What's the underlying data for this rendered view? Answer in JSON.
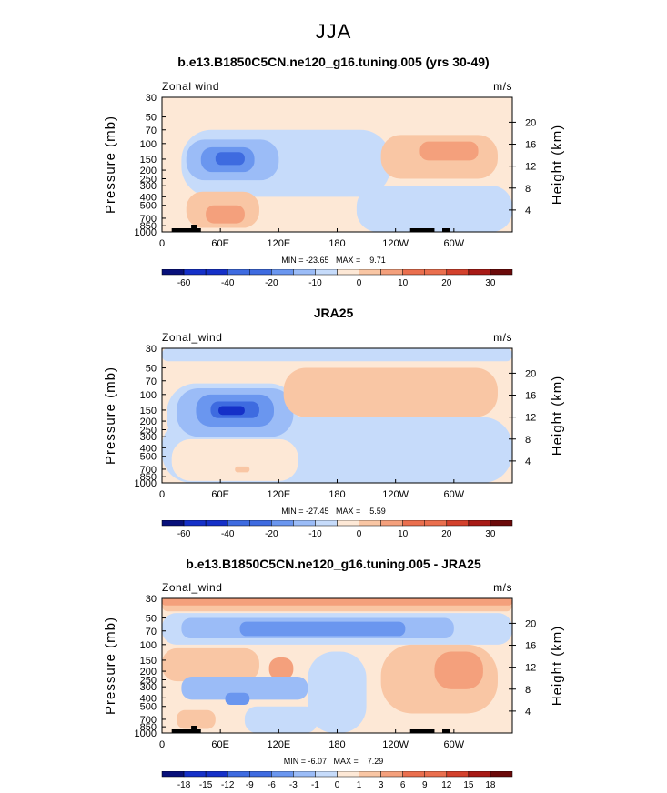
{
  "figure_title": "JJA",
  "colors": {
    "neg6": "#08107a",
    "neg5": "#1530c8",
    "neg4": "#3e6be0",
    "neg3": "#6a96ef",
    "neg2": "#9bbcf7",
    "neg1": "#c6dbfa",
    "zero": "#ffffff",
    "pos1": "#fde8d6",
    "pos2": "#f9c6a4",
    "pos3": "#f4a07c",
    "pos4": "#ea6f4e",
    "pos5": "#d3412c",
    "pos6": "#a81a16",
    "pos7": "#6b0a0a"
  },
  "chart_data": [
    {
      "type": "heatmap",
      "panel_title": "b.e13.B1850C5CN.ne120_g16.tuning.005 (yrs 30-49)",
      "variable_label": "Zonal wind",
      "units_label": "m/s",
      "ylabel": "Pressure (mb)",
      "y2label": "Height (km)",
      "x_ticks": [
        "0",
        "60E",
        "120E",
        "180",
        "120W",
        "60W"
      ],
      "y_ticks": [
        "30",
        "50",
        "70",
        "100",
        "150",
        "200",
        "250",
        "300",
        "400",
        "500",
        "700",
        "850",
        "1000"
      ],
      "y2_ticks": [
        "20",
        "16",
        "12",
        "8",
        "4"
      ],
      "stats_text": "MIN = -23.65   MAX =    9.71",
      "min": -23.65,
      "max": 9.71,
      "colorbar_labels": [
        "-60",
        "-40",
        "-20",
        "-10",
        "0",
        "10",
        "20",
        "30"
      ],
      "background": "pos1",
      "features": [
        {
          "level": "neg1",
          "lon": [
            20,
            235
          ],
          "p": [
            70,
            400
          ]
        },
        {
          "level": "neg1",
          "lon": [
            200,
            360
          ],
          "p": [
            300,
            1000
          ]
        },
        {
          "level": "neg2",
          "lon": [
            25,
            120
          ],
          "p": [
            90,
            260
          ]
        },
        {
          "level": "neg3",
          "lon": [
            40,
            95
          ],
          "p": [
            110,
            210
          ]
        },
        {
          "level": "neg4",
          "lon": [
            55,
            85
          ],
          "p": [
            125,
            175
          ]
        },
        {
          "level": "pos2",
          "lon": [
            225,
            345
          ],
          "p": [
            80,
            250
          ]
        },
        {
          "level": "pos3",
          "lon": [
            265,
            325
          ],
          "p": [
            95,
            155
          ]
        },
        {
          "level": "pos2",
          "lon": [
            25,
            100
          ],
          "p": [
            350,
            900
          ]
        },
        {
          "level": "pos3",
          "lon": [
            45,
            85
          ],
          "p": [
            500,
            800
          ]
        }
      ]
    },
    {
      "type": "heatmap",
      "panel_title": "JRA25",
      "variable_label": "Zonal_wind",
      "units_label": "m/s",
      "ylabel": "Pressure (mb)",
      "y2label": "Height (km)",
      "x_ticks": [
        "0",
        "60E",
        "120E",
        "180",
        "120W",
        "60W"
      ],
      "y_ticks": [
        "30",
        "50",
        "70",
        "100",
        "150",
        "200",
        "250",
        "300",
        "400",
        "500",
        "700",
        "850",
        "1000"
      ],
      "y2_ticks": [
        "20",
        "16",
        "12",
        "8",
        "4"
      ],
      "stats_text": "MIN = -27.45   MAX =    5.59",
      "min": -27.45,
      "max": 5.59,
      "colorbar_labels": [
        "-60",
        "-40",
        "-20",
        "-10",
        "0",
        "10",
        "20",
        "30"
      ],
      "background": "pos1",
      "features": [
        {
          "level": "neg1",
          "lon": [
            0,
            360
          ],
          "p": [
            30,
            42
          ]
        },
        {
          "level": "neg1",
          "lon": [
            0,
            360
          ],
          "p": [
            180,
            1000
          ]
        },
        {
          "level": "neg1",
          "lon": [
            5,
            140
          ],
          "p": [
            75,
            400
          ]
        },
        {
          "level": "neg2",
          "lon": [
            15,
            135
          ],
          "p": [
            85,
            300
          ]
        },
        {
          "level": "neg3",
          "lon": [
            35,
            115
          ],
          "p": [
            100,
            230
          ]
        },
        {
          "level": "neg4",
          "lon": [
            50,
            100
          ],
          "p": [
            120,
            185
          ]
        },
        {
          "level": "neg5",
          "lon": [
            58,
            85
          ],
          "p": [
            135,
            170
          ]
        },
        {
          "level": "pos2",
          "lon": [
            125,
            345
          ],
          "p": [
            50,
            180
          ]
        },
        {
          "level": "pos1",
          "lon": [
            10,
            140
          ],
          "p": [
            320,
            950
          ]
        },
        {
          "level": "pos2",
          "lon": [
            75,
            90
          ],
          "p": [
            650,
            760
          ]
        }
      ]
    },
    {
      "type": "heatmap",
      "panel_title": "b.e13.B1850C5CN.ne120_g16.tuning.005 - JRA25",
      "variable_label": "Zonal_wind",
      "units_label": "m/s",
      "ylabel": "Pressure (mb)",
      "y2label": "Height (km)",
      "x_ticks": [
        "0",
        "60E",
        "120E",
        "180",
        "120W",
        "60W"
      ],
      "y_ticks": [
        "30",
        "50",
        "70",
        "100",
        "150",
        "200",
        "250",
        "300",
        "400",
        "500",
        "700",
        "850",
        "1000"
      ],
      "y2_ticks": [
        "20",
        "16",
        "12",
        "8",
        "4"
      ],
      "stats_text": "MIN = -6.07   MAX =    7.29",
      "min": -6.07,
      "max": 7.29,
      "colorbar_labels": [
        "-18",
        "-15",
        "-12",
        "-9",
        "-6",
        "-3",
        "-1",
        "0",
        "1",
        "3",
        "6",
        "9",
        "12",
        "15",
        "18"
      ],
      "background": "pos1",
      "features": [
        {
          "level": "pos2",
          "lon": [
            0,
            360
          ],
          "p": [
            30,
            42
          ]
        },
        {
          "level": "pos3",
          "lon": [
            0,
            360
          ],
          "p": [
            30,
            36
          ]
        },
        {
          "level": "neg1",
          "lon": [
            0,
            360
          ],
          "p": [
            44,
            100
          ]
        },
        {
          "level": "neg2",
          "lon": [
            20,
            300
          ],
          "p": [
            50,
            85
          ]
        },
        {
          "level": "neg3",
          "lon": [
            80,
            250
          ],
          "p": [
            55,
            80
          ]
        },
        {
          "level": "pos2",
          "lon": [
            0,
            100
          ],
          "p": [
            110,
            260
          ]
        },
        {
          "level": "pos3",
          "lon": [
            110,
            135
          ],
          "p": [
            140,
            250
          ]
        },
        {
          "level": "pos2",
          "lon": [
            225,
            345
          ],
          "p": [
            100,
            600
          ]
        },
        {
          "level": "pos3",
          "lon": [
            280,
            330
          ],
          "p": [
            120,
            320
          ]
        },
        {
          "level": "neg1",
          "lon": [
            150,
            210
          ],
          "p": [
            120,
            1000
          ]
        },
        {
          "level": "neg2",
          "lon": [
            20,
            150
          ],
          "p": [
            230,
            420
          ]
        },
        {
          "level": "neg3",
          "lon": [
            65,
            90
          ],
          "p": [
            350,
            480
          ]
        },
        {
          "level": "pos2",
          "lon": [
            15,
            55
          ],
          "p": [
            550,
            900
          ]
        },
        {
          "level": "neg1",
          "lon": [
            85,
            160
          ],
          "p": [
            500,
            1000
          ]
        }
      ]
    }
  ]
}
